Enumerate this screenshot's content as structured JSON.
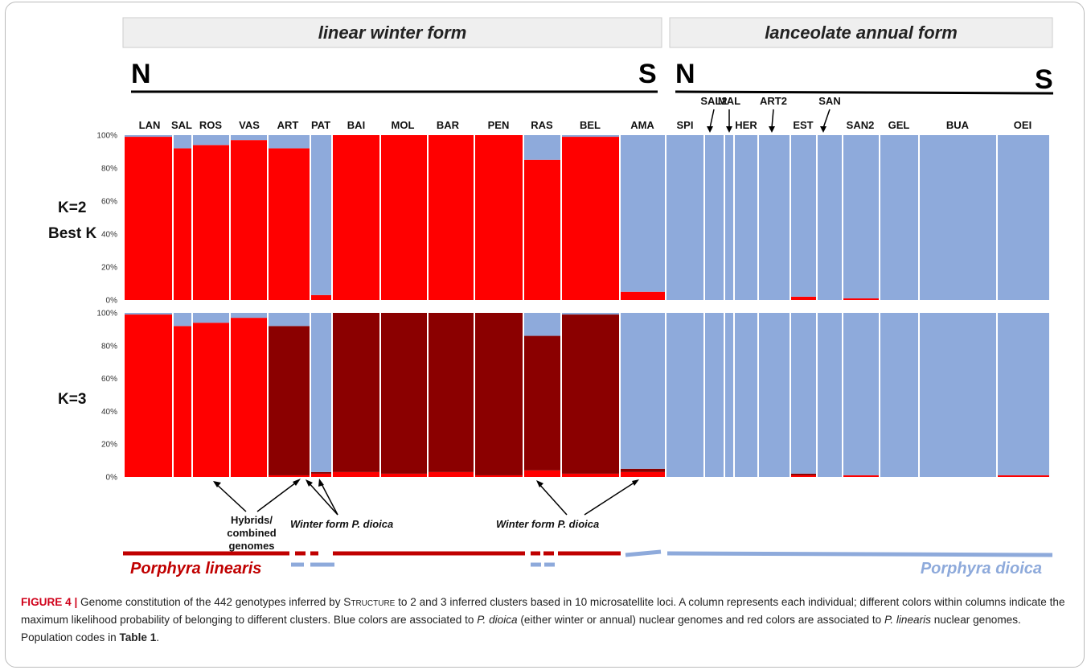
{
  "header": {
    "left_banner": "linear winter form",
    "right_banner": "lanceolate annual form",
    "north": "N",
    "south": "S"
  },
  "colors": {
    "linearis_red": "#ff0000",
    "dark_red": "#8b0000",
    "dioica_blue": "#8eaadb",
    "line_red": "#c00000",
    "line_blue": "#8eaadb"
  },
  "chart_data": [
    {
      "type": "bar",
      "panel": "K=2",
      "label_line1": "K=2",
      "label_line2": "Best K",
      "y_ticks": [
        "0%",
        "20%",
        "40%",
        "60%",
        "80%",
        "100%"
      ],
      "ylim": [
        0,
        100
      ],
      "populations": [
        {
          "name": "LAN",
          "red": 99,
          "blue": 1
        },
        {
          "name": "SAL",
          "red": 92,
          "blue": 8
        },
        {
          "name": "ROS",
          "red": 94,
          "blue": 6
        },
        {
          "name": "VAS",
          "red": 97,
          "blue": 3
        },
        {
          "name": "ART",
          "red": 92,
          "blue": 8
        },
        {
          "name": "PAT",
          "red": 3,
          "blue": 97
        },
        {
          "name": "BAI",
          "red": 100,
          "blue": 0
        },
        {
          "name": "MOL",
          "red": 100,
          "blue": 0
        },
        {
          "name": "BAR",
          "red": 100,
          "blue": 0
        },
        {
          "name": "PEN",
          "red": 100,
          "blue": 0
        },
        {
          "name": "RAS",
          "red": 85,
          "blue": 15
        },
        {
          "name": "BEL",
          "red": 99,
          "blue": 1
        },
        {
          "name": "AMA",
          "red": 5,
          "blue": 95
        },
        {
          "name": "SPI",
          "red": 0,
          "blue": 100
        },
        {
          "name": "SAL2",
          "red": 0,
          "blue": 100
        },
        {
          "name": "MAL",
          "red": 0,
          "blue": 100
        },
        {
          "name": "HER",
          "red": 0,
          "blue": 100
        },
        {
          "name": "ART2",
          "red": 0,
          "blue": 100
        },
        {
          "name": "EST",
          "red": 2,
          "blue": 98
        },
        {
          "name": "SAN",
          "red": 0,
          "blue": 100
        },
        {
          "name": "SAN2",
          "red": 1,
          "blue": 99
        },
        {
          "name": "GEL",
          "red": 0,
          "blue": 100
        },
        {
          "name": "BUA",
          "red": 0,
          "blue": 100
        },
        {
          "name": "OEI",
          "red": 0,
          "blue": 100
        }
      ]
    },
    {
      "type": "bar",
      "panel": "K=3",
      "label_line1": "K=3",
      "y_ticks": [
        "0%",
        "20%",
        "40%",
        "60%",
        "80%",
        "100%"
      ],
      "ylim": [
        0,
        100
      ],
      "populations": [
        {
          "name": "LAN",
          "red": 99,
          "dark": 0,
          "blue": 1
        },
        {
          "name": "SAL",
          "red": 92,
          "dark": 0,
          "blue": 8
        },
        {
          "name": "ROS",
          "red": 94,
          "dark": 0,
          "blue": 6
        },
        {
          "name": "VAS",
          "red": 97,
          "dark": 0,
          "blue": 3
        },
        {
          "name": "ART",
          "red": 1,
          "dark": 91,
          "blue": 8
        },
        {
          "name": "PAT",
          "red": 2,
          "dark": 1,
          "blue": 97
        },
        {
          "name": "BAI",
          "red": 3,
          "dark": 97,
          "blue": 0
        },
        {
          "name": "MOL",
          "red": 2,
          "dark": 98,
          "blue": 0
        },
        {
          "name": "BAR",
          "red": 3,
          "dark": 97,
          "blue": 0
        },
        {
          "name": "PEN",
          "red": 1,
          "dark": 99,
          "blue": 0
        },
        {
          "name": "RAS",
          "red": 4,
          "dark": 82,
          "blue": 14
        },
        {
          "name": "BEL",
          "red": 2,
          "dark": 97,
          "blue": 1
        },
        {
          "name": "AMA",
          "red": 3,
          "dark": 2,
          "blue": 95
        },
        {
          "name": "SPI",
          "red": 0,
          "dark": 0,
          "blue": 100
        },
        {
          "name": "SAL2",
          "red": 0,
          "dark": 0,
          "blue": 100
        },
        {
          "name": "MAL",
          "red": 0,
          "dark": 0,
          "blue": 100
        },
        {
          "name": "HER",
          "red": 0,
          "dark": 0,
          "blue": 100
        },
        {
          "name": "ART2",
          "red": 0,
          "dark": 0,
          "blue": 100
        },
        {
          "name": "EST",
          "red": 1,
          "dark": 1,
          "blue": 98
        },
        {
          "name": "SAN",
          "red": 0,
          "dark": 0,
          "blue": 100
        },
        {
          "name": "SAN2",
          "red": 1,
          "dark": 0,
          "blue": 99
        },
        {
          "name": "GEL",
          "red": 0,
          "dark": 0,
          "blue": 100
        },
        {
          "name": "BUA",
          "red": 0,
          "dark": 0,
          "blue": 100
        },
        {
          "name": "OEI",
          "red": 1,
          "dark": 0,
          "blue": 99
        }
      ]
    }
  ],
  "annotations": {
    "hybrids_line1": "Hybrids/",
    "hybrids_line2": "combined",
    "hybrids_line3": "genomes",
    "winter_form_prefix": "Winter form",
    "winter_form_species": "P.  dioica"
  },
  "species_labels": {
    "left": "Porphyra linearis",
    "right": "Porphyra dioica"
  },
  "caption": {
    "figure_label": "FIGURE 4 |",
    "text_1": " Genome constitution of the 442 genotypes inferred by ",
    "structure": "Structure",
    "text_2": " to 2 and 3 inferred clusters based in 10 microsatellite loci. A column represents each individual; different colors within columns indicate the maximum likelihood probability of belonging to different clusters. Blue colors are associated to ",
    "species_a": "P. dioica",
    "text_3": " (either winter or annual) nuclear genomes and red colors are associated to ",
    "species_b": "P. linearis",
    "text_4": " nuclear genomes. Population codes in ",
    "table_ref": "Table 1",
    "text_5": "."
  }
}
